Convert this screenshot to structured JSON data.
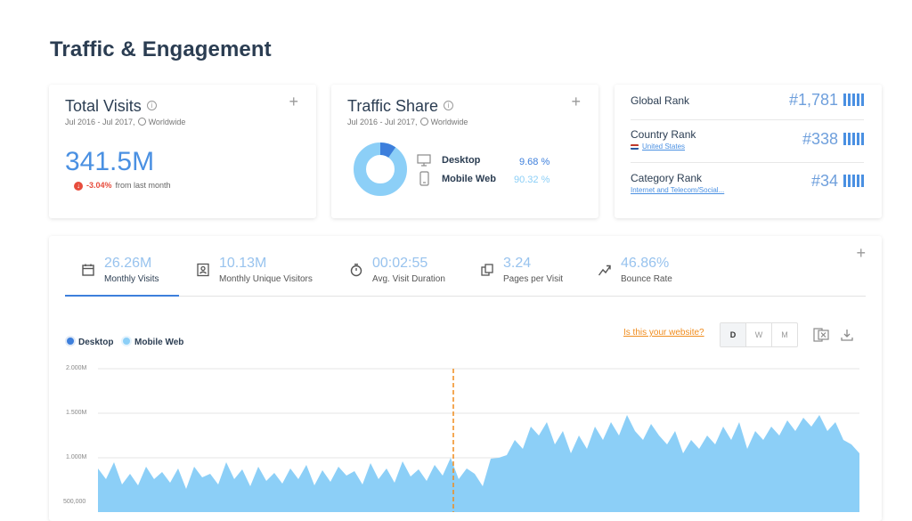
{
  "page_title": "Traffic & Engagement",
  "total_visits": {
    "title": "Total Visits",
    "date_range": "Jul 2016 - Jul 2017,",
    "region": "Worldwide",
    "value": "341.5M",
    "change": "-3.04%",
    "change_text": "from last month"
  },
  "traffic_share": {
    "title": "Traffic Share",
    "date_range": "Jul 2016 - Jul 2017,",
    "region": "Worldwide",
    "rows": [
      {
        "label": "Desktop",
        "value": "9.68 %",
        "share": 9.68,
        "color": "#3d7fdc"
      },
      {
        "label": "Mobile Web",
        "value": "90.32 %",
        "share": 90.32,
        "color": "#8ccff7"
      }
    ]
  },
  "ranks": {
    "global": {
      "label": "Global Rank",
      "value": "#1,781"
    },
    "country": {
      "label": "Country Rank",
      "sub": "United States",
      "value": "#338"
    },
    "category": {
      "label": "Category Rank",
      "sub": "Internet and Telecom/Social...",
      "value": "#34"
    }
  },
  "metrics": [
    {
      "value": "26.26M",
      "label": "Monthly Visits",
      "icon": "calendar-icon",
      "active": true
    },
    {
      "value": "10.13M",
      "label": "Monthly Unique Visitors",
      "icon": "contact-card-icon"
    },
    {
      "value": "00:02:55",
      "label": "Avg. Visit Duration",
      "icon": "stopwatch-icon"
    },
    {
      "value": "3.24",
      "label": "Pages per Visit",
      "icon": "pages-icon"
    },
    {
      "value": "46.86%",
      "label": "Bounce Rate",
      "icon": "bounce-arrow-icon"
    }
  ],
  "chart_controls": {
    "legend": [
      {
        "name": "Desktop",
        "color": "#3d7fdc"
      },
      {
        "name": "Mobile Web",
        "color": "#8ccff7"
      }
    ],
    "is_this_link": "Is this your website?",
    "granularity": [
      "D",
      "W",
      "M"
    ],
    "selected_granularity": "D"
  },
  "chart_data": {
    "type": "area",
    "y_ticks": [
      "2.000M",
      "1.500M",
      "1.000M",
      "500,000"
    ],
    "ylim": [
      400000,
      2000000
    ],
    "series": [
      {
        "name": "Mobile Web",
        "values": [
          880000,
          760000,
          950000,
          700000,
          820000,
          690000,
          900000,
          760000,
          840000,
          720000,
          880000,
          650000,
          900000,
          780000,
          820000,
          700000,
          950000,
          760000,
          870000,
          680000,
          900000,
          740000,
          830000,
          710000,
          880000,
          760000,
          920000,
          690000,
          860000,
          730000,
          900000,
          800000,
          850000,
          700000,
          940000,
          760000,
          880000,
          720000,
          960000,
          790000,
          870000,
          740000,
          920000,
          800000,
          1000000,
          760000,
          880000,
          820000,
          680000,
          990000,
          1000000,
          1030000,
          1200000,
          1100000,
          1350000,
          1250000,
          1400000,
          1150000,
          1300000,
          1050000,
          1250000,
          1100000,
          1350000,
          1200000,
          1400000,
          1250000,
          1480000,
          1300000,
          1200000,
          1380000,
          1250000,
          1150000,
          1300000,
          1050000,
          1200000,
          1100000,
          1250000,
          1150000,
          1350000,
          1200000,
          1400000,
          1100000,
          1300000,
          1200000,
          1350000,
          1250000,
          1420000,
          1300000,
          1450000,
          1350000,
          1480000,
          1300000,
          1400000,
          1200000,
          1150000,
          1050000
        ]
      }
    ],
    "marker": "dashed-orange-line"
  }
}
